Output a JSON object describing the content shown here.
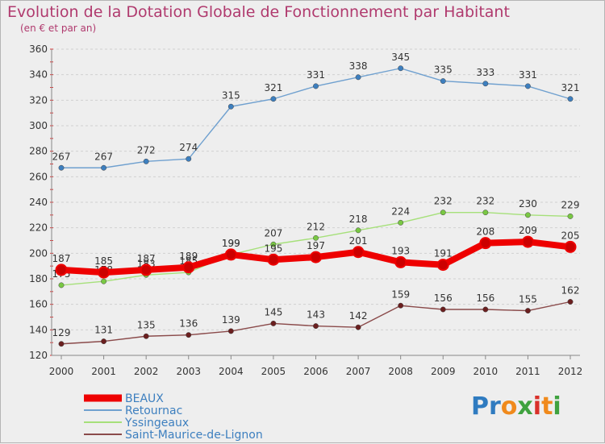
{
  "title": "Evolution de la Dotation Globale de Fonctionnement par Habitant",
  "subtitle": "(en € et par an)",
  "logo": {
    "letters": [
      "P",
      "r",
      "o",
      "x",
      "i",
      "t",
      "i"
    ],
    "colors": [
      "#2f7bc0",
      "#2f7bc0",
      "#f08a1c",
      "#3fa23f",
      "#d9312b",
      "#f08a1c",
      "#3fa23f"
    ]
  },
  "chart_data": {
    "type": "line",
    "x": [
      "2000",
      "2001",
      "2002",
      "2003",
      "2004",
      "2005",
      "2006",
      "2007",
      "2008",
      "2009",
      "2010",
      "2011",
      "2012"
    ],
    "ylim": [
      120,
      360
    ],
    "yticks": [
      120,
      140,
      160,
      180,
      200,
      220,
      240,
      260,
      280,
      300,
      320,
      340,
      360
    ],
    "grid": "horizontal",
    "legend_position": "bottom-left",
    "series": [
      {
        "name": "Retournac",
        "color": "#6fa0cf",
        "marker": "#3d7fbf",
        "values": [
          267,
          267,
          272,
          274,
          315,
          321,
          331,
          338,
          345,
          335,
          333,
          331,
          321
        ],
        "labels": [
          "267",
          "267",
          "272",
          "274",
          "315",
          "321",
          "331",
          "338",
          "345",
          "335",
          "333",
          "331",
          "321"
        ]
      },
      {
        "name": "Yssingeaux",
        "color": "#a6e07a",
        "marker": "#79c843",
        "values": [
          175,
          178,
          183,
          185,
          199,
          207,
          212,
          218,
          224,
          232,
          232,
          230,
          229
        ],
        "labels": [
          "175",
          "178",
          "183",
          "185",
          "199",
          "207",
          "212",
          "218",
          "224",
          "232",
          "232",
          "230",
          "229"
        ]
      },
      {
        "name": "Saint-Maurice-de-Lignon",
        "color": "#8a4a4a",
        "marker": "#6b1f1f",
        "values": [
          129,
          131,
          135,
          136,
          139,
          145,
          143,
          142,
          159,
          156,
          156,
          155,
          162
        ],
        "labels": [
          "129",
          "131",
          "135",
          "136",
          "139",
          "145",
          "143",
          "142",
          "159",
          "156",
          "156",
          "155",
          "162"
        ]
      },
      {
        "name": "BEAUX",
        "color": "#ee0000",
        "marker": "#cc0000",
        "values": [
          187,
          185,
          187,
          189,
          199,
          195,
          197,
          201,
          193,
          191,
          208,
          209,
          205
        ],
        "labels": [
          "187",
          "185",
          "187",
          "189",
          "199",
          "195",
          "197",
          "201",
          "193",
          "191",
          "208",
          "209",
          "205"
        ]
      }
    ],
    "legend": [
      {
        "name": "BEAUX",
        "color": "#ee0000",
        "text_color": "#3d7fbf"
      },
      {
        "name": "Retournac",
        "color": "#6fa0cf",
        "text_color": "#3d7fbf"
      },
      {
        "name": "Yssingeaux",
        "color": "#a6e07a",
        "text_color": "#3d7fbf"
      },
      {
        "name": "Saint-Maurice-de-Lignon",
        "color": "#8a4a4a",
        "text_color": "#3d7fbf"
      }
    ]
  }
}
